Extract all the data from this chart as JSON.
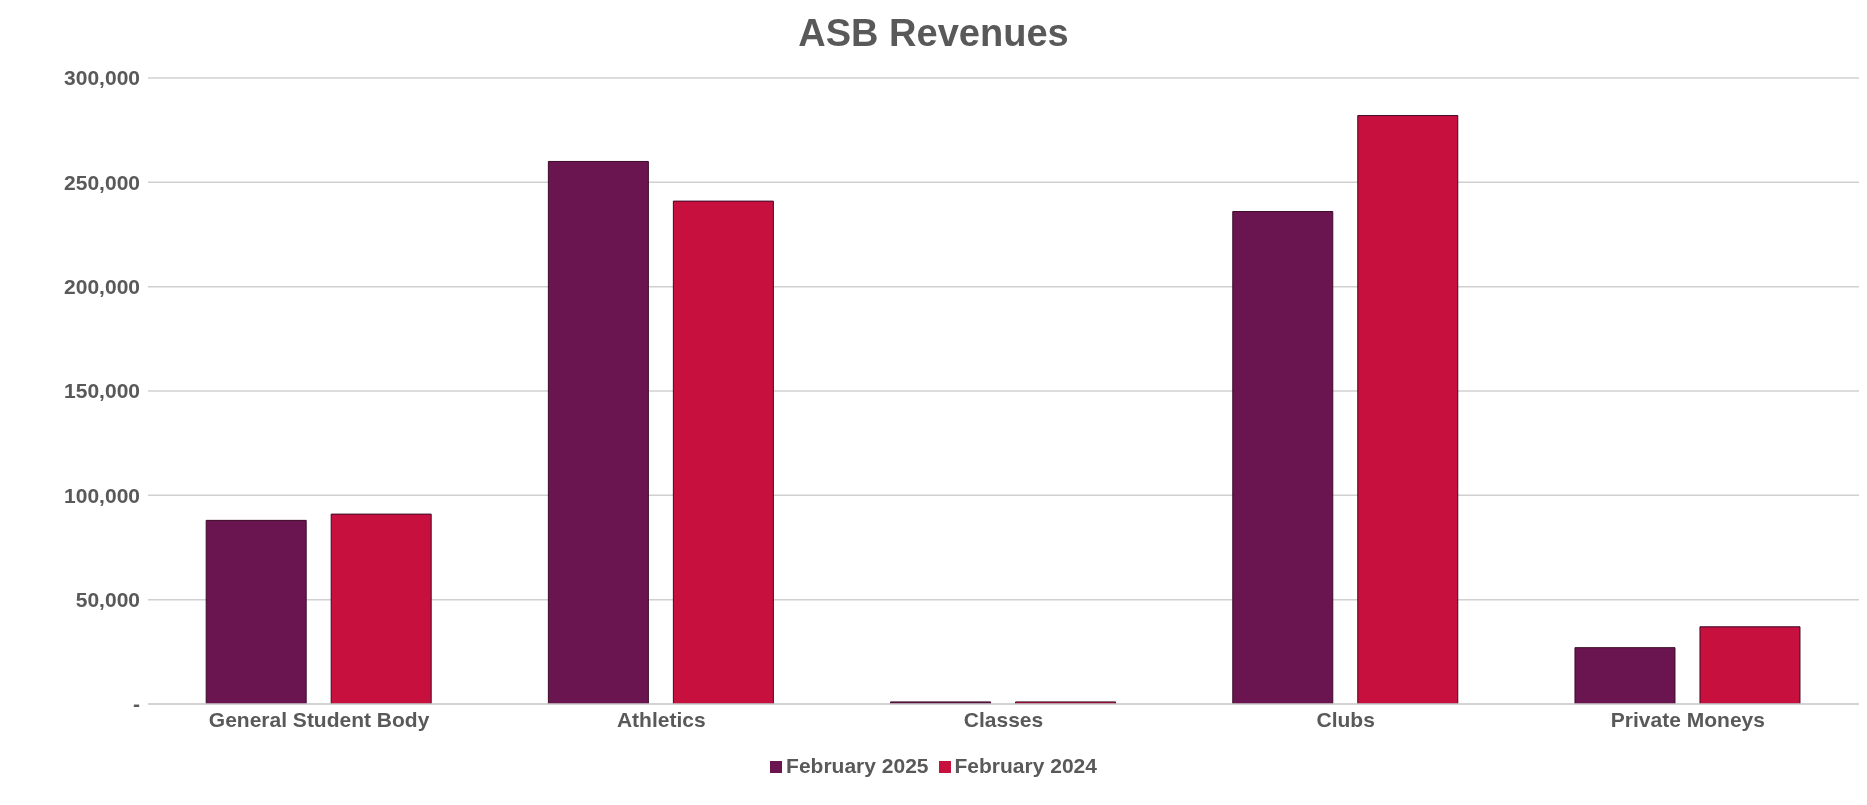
{
  "chart_data": {
    "type": "bar",
    "title": "ASB Revenues",
    "categories": [
      "General Student Body",
      "Athletics",
      "Classes",
      "Clubs",
      "Private Moneys"
    ],
    "series": [
      {
        "name": "February 2025",
        "color": "#6b1550",
        "values": [
          88000,
          260000,
          1000,
          236000,
          27000
        ]
      },
      {
        "name": "February 2024",
        "color": "#c8103e",
        "values": [
          91000,
          241000,
          1000,
          282000,
          37000
        ]
      }
    ],
    "ylim": [
      0,
      300000
    ],
    "yticks": [
      {
        "value": 0,
        "label": "-"
      },
      {
        "value": 50000,
        "label": "50,000"
      },
      {
        "value": 100000,
        "label": "100,000"
      },
      {
        "value": 150000,
        "label": "150,000"
      },
      {
        "value": 200000,
        "label": "200,000"
      },
      {
        "value": 250000,
        "label": "250,000"
      },
      {
        "value": 300000,
        "label": "300,000"
      }
    ],
    "grid": "y",
    "legend": "bottom"
  }
}
